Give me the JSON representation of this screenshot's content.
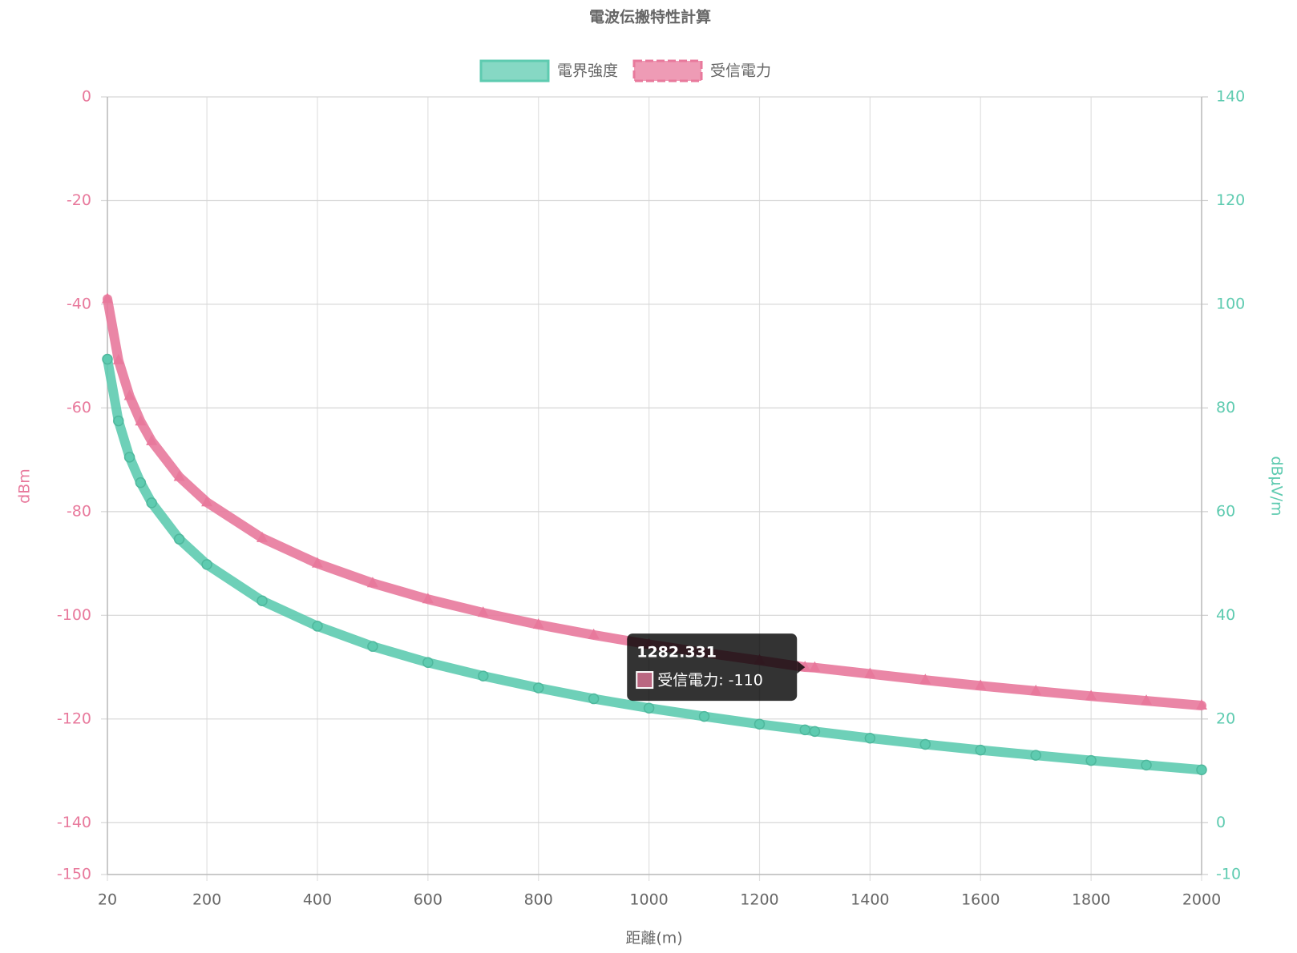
{
  "chart_data": {
    "type": "line",
    "title": "電波伝搬特性計算",
    "x_label": "距離(m)",
    "y_label": "dBm",
    "y2_label": "dBμV/m",
    "x": [
      20,
      40,
      60,
      80,
      100,
      150,
      200,
      300,
      400,
      500,
      600,
      700,
      800,
      900,
      1000,
      1100,
      1200,
      1282.331,
      1300,
      1400,
      1500,
      1600,
      1700,
      1800,
      1900,
      2000
    ],
    "series": [
      {
        "name": "電界強度",
        "color": "#5ecbb0",
        "axis": "y2",
        "marker": "circle",
        "values": [
          89.4,
          77.5,
          70.5,
          65.6,
          61.7,
          54.7,
          49.8,
          42.8,
          37.9,
          34.0,
          30.9,
          28.3,
          26.0,
          23.9,
          22.1,
          20.5,
          19.0,
          17.9,
          17.6,
          16.3,
          15.1,
          14.0,
          13.0,
          12.0,
          11.1,
          10.2
        ]
      },
      {
        "name": "受信電力",
        "color": "#e8799c",
        "axis": "y",
        "marker": "triangle",
        "values": [
          -39,
          -50.8,
          -57.7,
          -62.6,
          -66.4,
          -73.3,
          -78.2,
          -85.1,
          -90.0,
          -93.8,
          -96.9,
          -99.5,
          -101.8,
          -103.8,
          -105.6,
          -107.2,
          -108.7,
          -110,
          -110.1,
          -111.3,
          -112.5,
          -113.6,
          -114.6,
          -115.6,
          -116.5,
          -117.4
        ]
      }
    ],
    "xlim": [
      20,
      2000
    ],
    "xticks": [
      20,
      200,
      400,
      600,
      800,
      1000,
      1200,
      1400,
      1600,
      1800,
      2000
    ],
    "ylim": [
      -150,
      0
    ],
    "yticks": [
      0,
      -20,
      -40,
      -60,
      -80,
      -100,
      -120,
      -140,
      -150
    ],
    "y2lim": [
      -10,
      140
    ],
    "y2ticks": [
      140,
      120,
      100,
      80,
      60,
      40,
      20,
      0,
      -10
    ],
    "grid": true,
    "legend": "top",
    "tooltip": {
      "point": 17,
      "series": 1,
      "title": "1282.331",
      "label": "受信電力: -110"
    }
  }
}
